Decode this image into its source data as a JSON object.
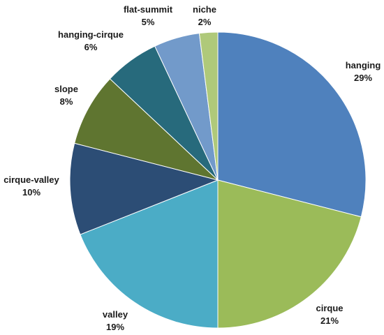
{
  "chart_data": {
    "type": "pie",
    "title": "",
    "slices": [
      {
        "label": "hanging",
        "value": 29,
        "pct_label": "29%",
        "color": "#4f81bd"
      },
      {
        "label": "cirque",
        "value": 21,
        "pct_label": "21%",
        "color": "#9bbb59"
      },
      {
        "label": "valley",
        "value": 19,
        "pct_label": "19%",
        "color": "#4bacc6"
      },
      {
        "label": "cirque-valley",
        "value": 10,
        "pct_label": "10%",
        "color": "#2c4d75"
      },
      {
        "label": "slope",
        "value": 8,
        "pct_label": "8%",
        "color": "#5f7530"
      },
      {
        "label": "hanging-cirque",
        "value": 6,
        "pct_label": "6%",
        "color": "#276a7c"
      },
      {
        "label": "flat-summit",
        "value": 5,
        "pct_label": "5%",
        "color": "#729aca"
      },
      {
        "label": "niche",
        "value": 2,
        "pct_label": "2%",
        "color": "#afc97a"
      }
    ]
  }
}
